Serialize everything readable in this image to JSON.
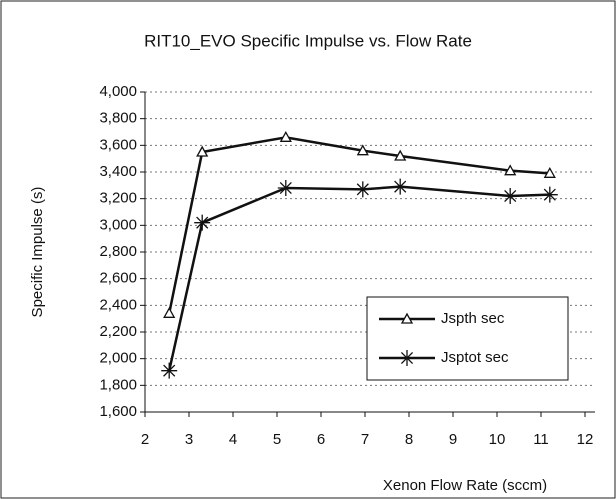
{
  "chart_data": {
    "type": "line",
    "title": "RIT10_EVO Specific Impulse vs. Flow Rate",
    "x_label": "Xenon Flow Rate (sccm)",
    "y_label": "Specific Impulse (s)",
    "x": [
      2.55,
      3.3,
      5.2,
      6.95,
      7.8,
      10.3,
      11.2
    ],
    "series": [
      {
        "name": "Jspth sec",
        "color": "#111111",
        "marker": "triangle",
        "values": [
          2340,
          3550,
          3660,
          3560,
          3520,
          3410,
          3390
        ]
      },
      {
        "name": "Jsptot sec",
        "color": "#111111",
        "marker": "star",
        "values": [
          1910,
          3020,
          3280,
          3270,
          3290,
          3220,
          3230
        ]
      }
    ],
    "xlim": [
      2,
      12
    ],
    "xticks": [
      2,
      3,
      4,
      5,
      6,
      7,
      8,
      9,
      10,
      11,
      12
    ],
    "ylim": [
      1600,
      4000
    ],
    "yticks": [
      {
        "value": 1600,
        "label": "1,600"
      },
      {
        "value": 1800,
        "label": "1,800"
      },
      {
        "value": 2000,
        "label": "2,000"
      },
      {
        "value": 2200,
        "label": "2,200"
      },
      {
        "value": 2400,
        "label": "2,400"
      },
      {
        "value": 2600,
        "label": "2,600"
      },
      {
        "value": 2800,
        "label": "2,800"
      },
      {
        "value": 3000,
        "label": "3,000"
      },
      {
        "value": 3200,
        "label": "3,200"
      },
      {
        "value": 3400,
        "label": "3,400"
      },
      {
        "value": 3600,
        "label": "3,600"
      },
      {
        "value": 3800,
        "label": "3,800"
      },
      {
        "value": 4000,
        "label": "4,000"
      }
    ],
    "grid": true,
    "legend": "lower right"
  }
}
